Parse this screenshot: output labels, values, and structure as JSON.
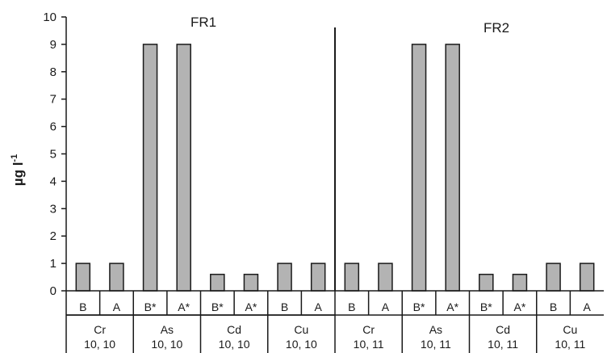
{
  "chart_data": {
    "type": "bar",
    "ylabel": "µg l",
    "ylabel_superscript": "-1",
    "ylim": [
      0,
      10
    ],
    "yticks": [
      "0",
      "1",
      "2",
      "3",
      "4",
      "5",
      "6",
      "7",
      "8",
      "9",
      "10"
    ],
    "bar_color": "#b3b3b3",
    "panels": [
      {
        "name": "FR1",
        "groups": [
          {
            "element": "Cr",
            "code": "10, 10",
            "bars": [
              {
                "label": "B",
                "value": 1
              },
              {
                "label": "A",
                "value": 1
              }
            ]
          },
          {
            "element": "As",
            "code": "10, 10",
            "bars": [
              {
                "label": "B*",
                "value": 9
              },
              {
                "label": "A*",
                "value": 9
              }
            ]
          },
          {
            "element": "Cd",
            "code": "10, 10",
            "bars": [
              {
                "label": "B*",
                "value": 0.6
              },
              {
                "label": "A*",
                "value": 0.6
              }
            ]
          },
          {
            "element": "Cu",
            "code": "10, 10",
            "bars": [
              {
                "label": "B",
                "value": 1
              },
              {
                "label": "A",
                "value": 1
              }
            ]
          }
        ]
      },
      {
        "name": "FR2",
        "groups": [
          {
            "element": "Cr",
            "code": "10, 11",
            "bars": [
              {
                "label": "B",
                "value": 1
              },
              {
                "label": "A",
                "value": 1
              }
            ]
          },
          {
            "element": "As",
            "code": "10, 11",
            "bars": [
              {
                "label": "B*",
                "value": 9
              },
              {
                "label": "A*",
                "value": 9
              }
            ]
          },
          {
            "element": "Cd",
            "code": "10, 11",
            "bars": [
              {
                "label": "B*",
                "value": 0.6
              },
              {
                "label": "A*",
                "value": 0.6
              }
            ]
          },
          {
            "element": "Cu",
            "code": "10, 11",
            "bars": [
              {
                "label": "B",
                "value": 1
              },
              {
                "label": "A",
                "value": 1
              }
            ]
          }
        ]
      }
    ]
  }
}
